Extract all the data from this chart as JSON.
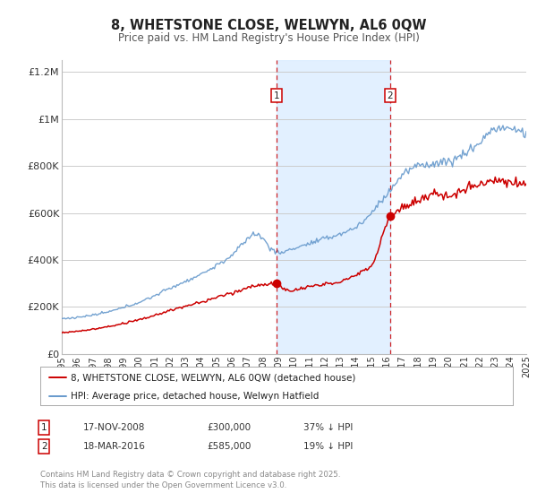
{
  "title": "8, WHETSTONE CLOSE, WELWYN, AL6 0QW",
  "subtitle": "Price paid vs. HM Land Registry's House Price Index (HPI)",
  "background_color": "#ffffff",
  "plot_bg_color": "#ffffff",
  "grid_color": "#cccccc",
  "hpi_color": "#6699cc",
  "price_color": "#cc0000",
  "shade_color": "#ddeeff",
  "vline_color": "#cc0000",
  "ylim": [
    0,
    1250000
  ],
  "yticks": [
    0,
    200000,
    400000,
    600000,
    800000,
    1000000,
    1200000
  ],
  "ytick_labels": [
    "£0",
    "£200K",
    "£400K",
    "£600K",
    "£800K",
    "£1M",
    "£1.2M"
  ],
  "year_start": 1995,
  "year_end": 2025,
  "sale1_year": 2008.88,
  "sale1_price": 300000,
  "sale2_year": 2016.21,
  "sale2_price": 585000,
  "legend_line1": "8, WHETSTONE CLOSE, WELWYN, AL6 0QW (detached house)",
  "legend_line2": "HPI: Average price, detached house, Welwyn Hatfield",
  "footer": "Contains HM Land Registry data © Crown copyright and database right 2025.\nThis data is licensed under the Open Government Licence v3.0.",
  "table_row1": [
    "1",
    "17-NOV-2008",
    "£300,000",
    "37% ↓ HPI"
  ],
  "table_row2": [
    "2",
    "18-MAR-2016",
    "£585,000",
    "19% ↓ HPI"
  ]
}
